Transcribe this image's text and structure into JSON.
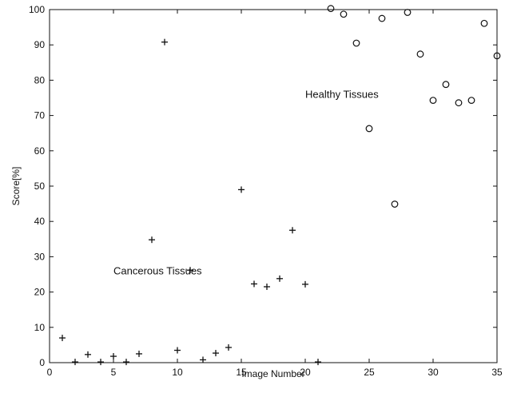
{
  "chart_data": {
    "type": "scatter",
    "xlabel": "Image Number",
    "ylabel": "Score[%]",
    "xlim": [
      0,
      35
    ],
    "ylim": [
      0,
      100
    ],
    "xticks": [
      0,
      5,
      10,
      15,
      20,
      25,
      30,
      35
    ],
    "yticks": [
      0,
      10,
      20,
      30,
      40,
      50,
      60,
      70,
      80,
      90,
      100
    ],
    "grid": false,
    "series": [
      {
        "marker": "plus",
        "points": [
          {
            "x": 1,
            "y": 7
          },
          {
            "x": 2,
            "y": 0.2
          },
          {
            "x": 3,
            "y": 2.3
          },
          {
            "x": 4,
            "y": 0.2
          },
          {
            "x": 5,
            "y": 1.8
          },
          {
            "x": 6,
            "y": 0.2
          },
          {
            "x": 7,
            "y": 2.5
          },
          {
            "x": 8,
            "y": 34.8
          },
          {
            "x": 9,
            "y": 90.8
          },
          {
            "x": 10,
            "y": 3.5
          },
          {
            "x": 11,
            "y": 26.2
          },
          {
            "x": 12,
            "y": 0.8
          },
          {
            "x": 13,
            "y": 2.7
          },
          {
            "x": 14,
            "y": 4.3
          },
          {
            "x": 15,
            "y": 49
          },
          {
            "x": 16,
            "y": 22.3
          },
          {
            "x": 17,
            "y": 21.5
          },
          {
            "x": 18,
            "y": 23.8
          },
          {
            "x": 19,
            "y": 37.5
          },
          {
            "x": 20,
            "y": 22.2
          },
          {
            "x": 21,
            "y": 0.2
          }
        ]
      },
      {
        "marker": "circle",
        "points": [
          {
            "x": 22,
            "y": 100.3
          },
          {
            "x": 23,
            "y": 98.7
          },
          {
            "x": 24,
            "y": 90.5
          },
          {
            "x": 25,
            "y": 66.3
          },
          {
            "x": 26,
            "y": 97.5
          },
          {
            "x": 27,
            "y": 44.9
          },
          {
            "x": 28,
            "y": 99.2
          },
          {
            "x": 29,
            "y": 87.4
          },
          {
            "x": 30,
            "y": 74.3
          },
          {
            "x": 31,
            "y": 78.8
          },
          {
            "x": 32,
            "y": 73.6
          },
          {
            "x": 33,
            "y": 74.3
          },
          {
            "x": 34,
            "y": 96.1
          },
          {
            "x": 35,
            "y": 86.9
          }
        ]
      }
    ],
    "annotations": [
      {
        "text": "Healthy Tissues",
        "x": 20,
        "y": 75
      },
      {
        "text": "Cancerous Tissues",
        "x": 5,
        "y": 25
      }
    ]
  }
}
